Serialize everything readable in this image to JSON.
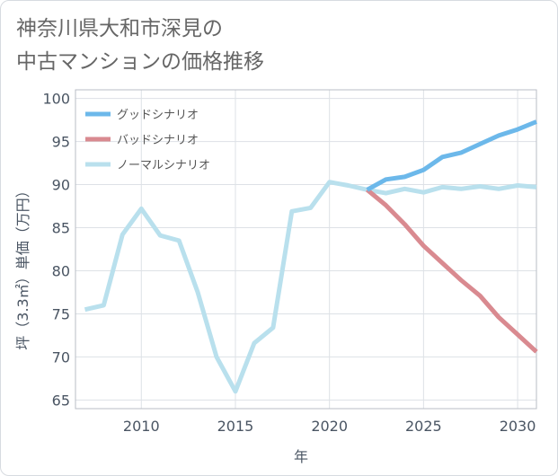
{
  "title": "神奈川県大和市深見の\n中古マンションの価格推移",
  "chart_data": {
    "type": "line",
    "xlabel": "年",
    "ylabel": "坪（3.3㎡）単価（万円）",
    "xlim": [
      2006.5,
      2031
    ],
    "ylim": [
      64,
      101
    ],
    "xticks": [
      2010,
      2015,
      2020,
      2025,
      2030
    ],
    "yticks": [
      65,
      70,
      75,
      80,
      85,
      90,
      95,
      100
    ],
    "grid": true,
    "legend_position": "top-left",
    "series": [
      {
        "name": "グッドシナリオ",
        "color": "#6cb8ea",
        "x": [
          2022,
          2023,
          2024,
          2025,
          2026,
          2027,
          2028,
          2029,
          2030,
          2031
        ],
        "values": [
          89.4,
          90.6,
          90.9,
          91.7,
          93.2,
          93.7,
          94.7,
          95.7,
          96.4,
          97.3
        ]
      },
      {
        "name": "バッドシナリオ",
        "color": "#d98a90",
        "x": [
          2022,
          2023,
          2024,
          2025,
          2026,
          2027,
          2028,
          2029,
          2030,
          2031
        ],
        "values": [
          89.4,
          87.6,
          85.4,
          82.9,
          80.9,
          78.9,
          77.1,
          74.6,
          72.6,
          70.6
        ]
      },
      {
        "name": "ノーマルシナリオ",
        "color": "#b9e0ed",
        "x": [
          2007,
          2008,
          2009,
          2010,
          2011,
          2012,
          2013,
          2014,
          2015,
          2016,
          2017,
          2018,
          2019,
          2020,
          2021,
          2022,
          2023,
          2024,
          2025,
          2026,
          2027,
          2028,
          2029,
          2030,
          2031
        ],
        "values": [
          75.5,
          76.0,
          84.2,
          87.2,
          84.1,
          83.5,
          77.5,
          70.0,
          66.0,
          71.6,
          73.4,
          86.9,
          87.3,
          90.3,
          89.9,
          89.4,
          89.0,
          89.5,
          89.1,
          89.7,
          89.5,
          89.8,
          89.5,
          89.9,
          89.7
        ]
      }
    ]
  }
}
